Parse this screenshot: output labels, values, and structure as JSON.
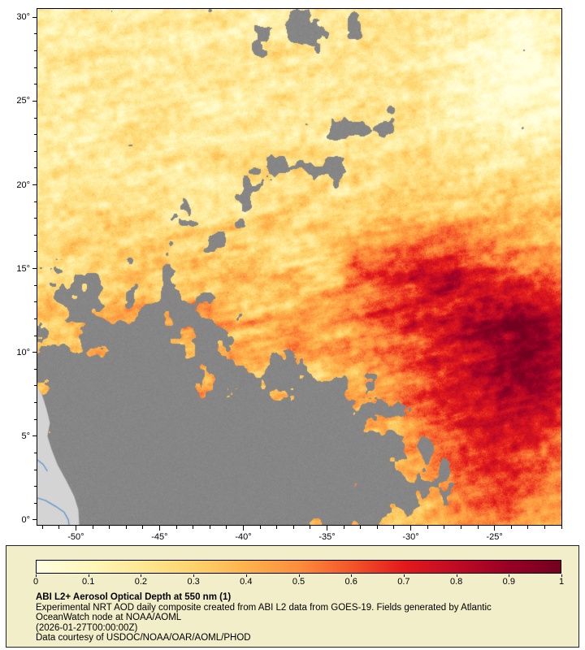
{
  "map": {
    "lat_tick_labels": [
      "30°",
      "25°",
      "20°",
      "15°",
      "10°",
      "5°",
      "0°"
    ],
    "lon_tick_labels": [
      "-50°",
      "-45°",
      "-40°",
      "-35°",
      "-30°",
      "-25°"
    ]
  },
  "legend": {
    "colorbar_tick_labels": [
      "0",
      "0.1",
      "0.2",
      "0.3",
      "0.4",
      "0.5",
      "0.6",
      "0.7",
      "0.8",
      "0.9",
      "1"
    ],
    "title": "ABI L2+ Aerosol Optical Depth at 550 nm (1)",
    "description_line1": "Experimental NRT AOD daily composite created from ABI L2 data from GOES-19. Fields generated by Atlantic",
    "description_line2": "OceanWatch node at NOAA/AOML",
    "timestamp": "(2026-01-27T00:00:00Z)",
    "credit": "Data courtesy of USDOC/NOAA/OAR/AOML/PHOD",
    "panel_bg": "#f2eeca",
    "panel_border": "#222222"
  },
  "chart_data": {
    "type": "heatmap",
    "title": "ABI L2+ Aerosol Optical Depth at 550 nm (1)",
    "x_axis": "longitude_deg_east",
    "y_axis": "latitude_deg_north",
    "x_ticks": [
      -50,
      -45,
      -40,
      -35,
      -30,
      -25
    ],
    "y_ticks": [
      30,
      25,
      20,
      15,
      10,
      5,
      0
    ],
    "x_range": [
      -52.3,
      -21.0
    ],
    "y_range": [
      -0.3,
      30.5
    ],
    "value_range": [
      0,
      1
    ],
    "colorbar_ticks": [
      0,
      0.1,
      0.2,
      0.3,
      0.4,
      0.5,
      0.6,
      0.7,
      0.8,
      0.9,
      1
    ],
    "colormap_stops": [
      "#ffffe0",
      "#fff7bc",
      "#fee894",
      "#fed36b",
      "#fdb24c",
      "#fd8d3c",
      "#f4562a",
      "#e31a1c",
      "#c00b24",
      "#990026",
      "#73001f"
    ],
    "no_data_color": "#868686",
    "thin_cloud_color": "#d6d6d6",
    "land_color": "#d4d4d4",
    "water_line_color": "#5f93cf",
    "coastline": [
      [
        -52.45,
        8.2
      ],
      [
        -52.0,
        7.4
      ],
      [
        -51.75,
        6.6
      ],
      [
        -51.55,
        5.8
      ],
      [
        -51.7,
        5.0
      ],
      [
        -51.45,
        4.2
      ],
      [
        -51.1,
        3.3
      ],
      [
        -50.55,
        2.3
      ],
      [
        -50.1,
        1.4
      ],
      [
        -49.85,
        0.6
      ],
      [
        -49.8,
        -0.4
      ]
    ],
    "rivers": [
      [
        [
          -52.45,
          1.35
        ],
        [
          -51.8,
          1.15
        ],
        [
          -51.2,
          0.8
        ],
        [
          -50.7,
          0.45
        ],
        [
          -50.45,
          0.0
        ],
        [
          -50.4,
          -0.35
        ]
      ],
      [
        [
          -52.45,
          3.7
        ],
        [
          -51.95,
          3.3
        ],
        [
          -51.7,
          2.9
        ]
      ]
    ],
    "regions": [
      {
        "label": "background-marine-aod-north",
        "lat": [
          18,
          30.5
        ],
        "lon": [
          -52.3,
          -21
        ],
        "aod_range": [
          0.05,
          0.3
        ]
      },
      {
        "label": "dust-plume-core-southeast",
        "lat": [
          3,
          14
        ],
        "lon": [
          -32,
          -21
        ],
        "aod_range": [
          0.6,
          1.0
        ]
      },
      {
        "label": "dust-plume-center",
        "lat": [
          8,
          18
        ],
        "lon": [
          -46,
          -30
        ],
        "aod_range": [
          0.3,
          0.7
        ]
      },
      {
        "label": "pale-northeast-corner",
        "lat": [
          20,
          30
        ],
        "lon": [
          -28,
          -21
        ],
        "aod_range": [
          0.02,
          0.2
        ]
      },
      {
        "label": "cloud-no-data-south",
        "lat": [
          0,
          8
        ],
        "lon": [
          -52.3,
          -28
        ],
        "value": "missing"
      },
      {
        "label": "south-america-coast-land",
        "lat": [
          0,
          8
        ],
        "lon": [
          -52.3,
          -49.8
        ],
        "value": "land"
      }
    ]
  }
}
